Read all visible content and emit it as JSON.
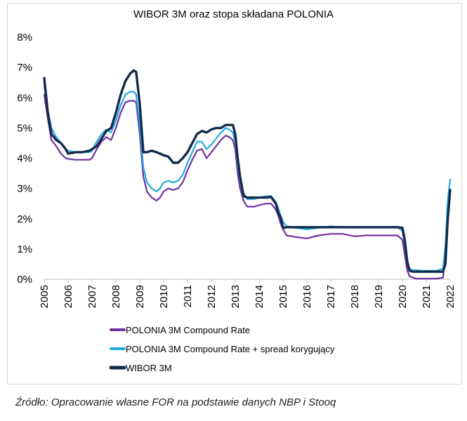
{
  "chart_data": {
    "type": "line",
    "title": "WIBOR 3M oraz stopa składana POLONIA",
    "xlabel": "",
    "ylabel": "",
    "xlim": [
      2005,
      2022
    ],
    "ylim": [
      0,
      8
    ],
    "x_ticks": [
      "2005",
      "2006",
      "2007",
      "2008",
      "2009",
      "2010",
      "2011",
      "2012",
      "2013",
      "2014",
      "2015",
      "2016",
      "2017",
      "2018",
      "2019",
      "2020",
      "2021",
      "2022"
    ],
    "y_ticks": [
      "0%",
      "1%",
      "2%",
      "3%",
      "4%",
      "5%",
      "6%",
      "7%",
      "8%"
    ],
    "grid": false,
    "legend_position": "bottom-left",
    "series": [
      {
        "name": "POLONIA 3M Compound Rate",
        "color": "#7030a0",
        "x": [
          2005.0,
          2005.15,
          2005.3,
          2005.5,
          2005.7,
          2005.9,
          2006.0,
          2006.3,
          2006.6,
          2006.9,
          2007.0,
          2007.2,
          2007.4,
          2007.6,
          2007.8,
          2008.0,
          2008.2,
          2008.4,
          2008.6,
          2008.75,
          2008.85,
          2009.0,
          2009.15,
          2009.3,
          2009.5,
          2009.7,
          2009.85,
          2010.0,
          2010.2,
          2010.4,
          2010.6,
          2010.8,
          2011.0,
          2011.2,
          2011.4,
          2011.6,
          2011.8,
          2012.0,
          2012.2,
          2012.4,
          2012.6,
          2012.75,
          2012.9,
          2013.0,
          2013.1,
          2013.2,
          2013.35,
          2013.5,
          2013.8,
          2014.0,
          2014.3,
          2014.5,
          2014.7,
          2014.8,
          2014.9,
          2015.0,
          2015.15,
          2015.5,
          2016.0,
          2016.5,
          2017.0,
          2017.5,
          2018.0,
          2018.5,
          2019.0,
          2019.5,
          2019.8,
          2020.0,
          2020.1,
          2020.2,
          2020.3,
          2020.45,
          2020.6,
          2020.8,
          2021.0,
          2021.4,
          2021.7,
          2021.8,
          2021.9,
          2022.0
        ],
        "values": [
          6.1,
          5.3,
          4.6,
          4.4,
          4.15,
          4.0,
          3.98,
          3.95,
          3.95,
          3.95,
          4.0,
          4.3,
          4.55,
          4.7,
          4.6,
          5.0,
          5.5,
          5.85,
          5.9,
          5.9,
          5.85,
          4.8,
          3.4,
          2.9,
          2.7,
          2.6,
          2.7,
          2.9,
          3.0,
          2.95,
          3.0,
          3.2,
          3.6,
          3.95,
          4.25,
          4.3,
          4.0,
          4.2,
          4.4,
          4.6,
          4.75,
          4.7,
          4.6,
          4.3,
          3.5,
          3.0,
          2.6,
          2.4,
          2.4,
          2.45,
          2.5,
          2.5,
          2.3,
          2.1,
          1.85,
          1.65,
          1.45,
          1.4,
          1.35,
          1.45,
          1.5,
          1.5,
          1.42,
          1.45,
          1.45,
          1.45,
          1.45,
          1.3,
          0.8,
          0.3,
          0.1,
          0.05,
          0.02,
          0.02,
          0.02,
          0.02,
          0.05,
          0.8,
          2.3,
          2.9
        ]
      },
      {
        "name": "POLONIA 3M Compound Rate + spread korygujący",
        "color": "#21a9e1",
        "x": [
          2005.0,
          2005.15,
          2005.3,
          2005.5,
          2005.7,
          2005.9,
          2006.0,
          2006.3,
          2006.6,
          2006.9,
          2007.0,
          2007.2,
          2007.4,
          2007.6,
          2007.8,
          2008.0,
          2008.2,
          2008.4,
          2008.6,
          2008.75,
          2008.85,
          2009.0,
          2009.15,
          2009.3,
          2009.5,
          2009.7,
          2009.85,
          2010.0,
          2010.2,
          2010.4,
          2010.6,
          2010.8,
          2011.0,
          2011.2,
          2011.4,
          2011.6,
          2011.8,
          2012.0,
          2012.2,
          2012.4,
          2012.6,
          2012.75,
          2012.9,
          2013.0,
          2013.1,
          2013.2,
          2013.35,
          2013.5,
          2013.8,
          2014.0,
          2014.3,
          2014.5,
          2014.7,
          2014.8,
          2014.9,
          2015.0,
          2015.15,
          2015.5,
          2016.0,
          2016.5,
          2017.0,
          2017.5,
          2018.0,
          2018.5,
          2019.0,
          2019.5,
          2019.8,
          2020.0,
          2020.1,
          2020.2,
          2020.3,
          2020.45,
          2020.6,
          2020.8,
          2021.0,
          2021.4,
          2021.7,
          2021.8,
          2021.9,
          2022.0
        ],
        "values": [
          6.4,
          5.6,
          5.0,
          4.7,
          4.5,
          4.3,
          4.25,
          4.2,
          4.2,
          4.2,
          4.25,
          4.55,
          4.8,
          4.95,
          4.85,
          5.25,
          5.75,
          6.1,
          6.2,
          6.2,
          6.1,
          5.1,
          3.7,
          3.2,
          3.0,
          2.9,
          3.0,
          3.2,
          3.25,
          3.2,
          3.25,
          3.45,
          3.85,
          4.2,
          4.55,
          4.55,
          4.3,
          4.45,
          4.65,
          4.85,
          5.0,
          4.95,
          4.85,
          4.55,
          3.75,
          3.25,
          2.85,
          2.65,
          2.65,
          2.7,
          2.75,
          2.75,
          2.55,
          2.35,
          2.1,
          1.9,
          1.75,
          1.7,
          1.65,
          1.7,
          1.75,
          1.72,
          1.7,
          1.72,
          1.72,
          1.72,
          1.72,
          1.6,
          1.1,
          0.55,
          0.35,
          0.3,
          0.3,
          0.28,
          0.28,
          0.28,
          0.35,
          1.1,
          2.6,
          3.3
        ]
      },
      {
        "name": "WIBOR 3M",
        "color": "#142a4a",
        "x": [
          2005.0,
          2005.15,
          2005.3,
          2005.5,
          2005.7,
          2005.9,
          2006.0,
          2006.3,
          2006.6,
          2006.9,
          2007.0,
          2007.2,
          2007.4,
          2007.6,
          2007.8,
          2008.0,
          2008.2,
          2008.4,
          2008.6,
          2008.75,
          2008.85,
          2009.0,
          2009.15,
          2009.3,
          2009.5,
          2009.7,
          2009.85,
          2010.0,
          2010.2,
          2010.4,
          2010.6,
          2010.8,
          2011.0,
          2011.2,
          2011.4,
          2011.6,
          2011.8,
          2012.0,
          2012.2,
          2012.4,
          2012.6,
          2012.75,
          2012.9,
          2013.0,
          2013.1,
          2013.2,
          2013.35,
          2013.5,
          2013.8,
          2014.0,
          2014.3,
          2014.5,
          2014.7,
          2014.8,
          2014.9,
          2015.0,
          2015.15,
          2015.5,
          2016.0,
          2016.5,
          2017.0,
          2017.5,
          2018.0,
          2018.5,
          2019.0,
          2019.5,
          2019.8,
          2020.0,
          2020.1,
          2020.2,
          2020.3,
          2020.45,
          2020.6,
          2020.8,
          2021.0,
          2021.4,
          2021.7,
          2021.8,
          2021.9,
          2022.0
        ],
        "values": [
          6.65,
          5.5,
          4.8,
          4.6,
          4.5,
          4.3,
          4.15,
          4.2,
          4.2,
          4.25,
          4.3,
          4.4,
          4.65,
          4.9,
          5.0,
          5.5,
          6.1,
          6.55,
          6.8,
          6.9,
          6.85,
          5.8,
          4.2,
          4.2,
          4.25,
          4.2,
          4.15,
          4.1,
          4.05,
          3.85,
          3.85,
          4.0,
          4.2,
          4.5,
          4.8,
          4.9,
          4.85,
          4.95,
          5.0,
          5.0,
          5.1,
          5.1,
          5.1,
          4.8,
          4.0,
          3.4,
          2.75,
          2.7,
          2.7,
          2.7,
          2.7,
          2.72,
          2.5,
          2.2,
          2.05,
          1.7,
          1.72,
          1.72,
          1.72,
          1.72,
          1.72,
          1.72,
          1.72,
          1.72,
          1.72,
          1.72,
          1.72,
          1.7,
          1.3,
          0.6,
          0.28,
          0.25,
          0.25,
          0.25,
          0.25,
          0.25,
          0.25,
          0.5,
          2.0,
          2.95
        ]
      }
    ],
    "annotations": [
      "Źródło: Opracowanie własne FOR na podstawie danych NBP i Stooq"
    ]
  }
}
